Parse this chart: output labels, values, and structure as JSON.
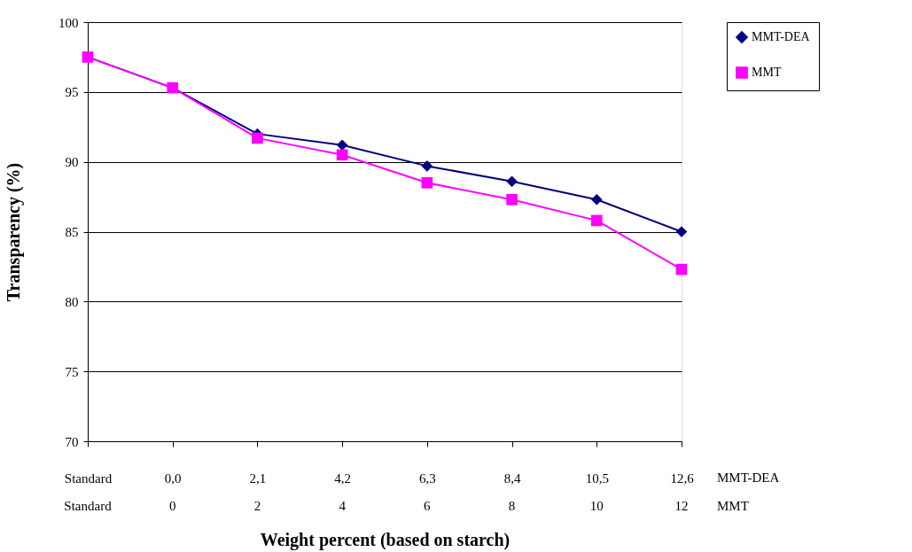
{
  "chart_data": {
    "type": "line",
    "xlabel": "Weight percent (based on starch)",
    "ylabel": "Transparency (%)",
    "categories": [
      "Standard",
      "0,0",
      "2,1",
      "4,2",
      "6,3",
      "8,4",
      "10,5",
      "12,6"
    ],
    "series": [
      {
        "name": "MMT-DEA",
        "color": "#000080",
        "marker": "diamond",
        "values": [
          97.5,
          95.3,
          92.0,
          91.2,
          89.7,
          88.6,
          87.3,
          85.0
        ]
      },
      {
        "name": "MMT",
        "color": "#ff00ff",
        "marker": "square",
        "values": [
          97.5,
          95.3,
          91.7,
          90.5,
          88.5,
          87.3,
          85.8,
          82.3
        ]
      }
    ],
    "annotations": [
      "MMT-DEA",
      "MMT",
      "Standard",
      "0",
      "2",
      "4",
      "6",
      "8",
      "10",
      "12"
    ],
    "ylim": [
      70,
      100
    ],
    "yticks": [
      70,
      75,
      80,
      85,
      90,
      95,
      100
    ],
    "grid": "y",
    "legend": "right",
    "line_style": "solid"
  }
}
